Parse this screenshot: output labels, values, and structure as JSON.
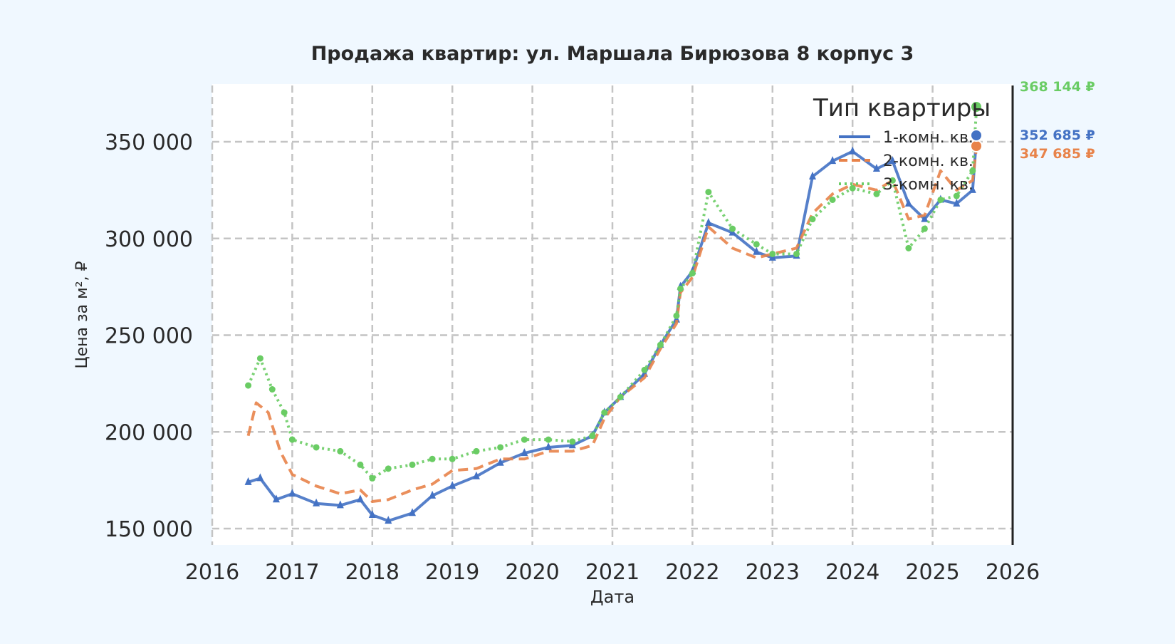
{
  "chart_data": {
    "type": "line",
    "title": "Продажа квартир: ул. Маршала Бирюзова 8 корпус 3",
    "xlabel": "Дата",
    "ylabel": "Цена за м², ₽",
    "xlim": [
      2016,
      2026
    ],
    "ylim": [
      142000,
      378000
    ],
    "xticks": [
      "2016",
      "2017",
      "2018",
      "2019",
      "2020",
      "2021",
      "2022",
      "2023",
      "2024",
      "2025",
      "2026"
    ],
    "yticks": [
      150000,
      200000,
      250000,
      300000,
      350000
    ],
    "ytick_labels": [
      "150 000",
      "200 000",
      "250 000",
      "300 000",
      "350 000"
    ],
    "grid": true,
    "legend": {
      "title": "Тип квартиры",
      "placement": "top-right"
    },
    "series": [
      {
        "name": "1-комн. кв.",
        "color": "#4472c4",
        "style": "solid-triangle",
        "end_label": "352 685 ₽",
        "x": [
          2016.45,
          2016.6,
          2016.8,
          2017.0,
          2017.3,
          2017.6,
          2017.85,
          2018.0,
          2018.2,
          2018.5,
          2018.75,
          2019.0,
          2019.3,
          2019.6,
          2019.9,
          2020.2,
          2020.5,
          2020.75,
          2020.9,
          2021.1,
          2021.4,
          2021.6,
          2021.8,
          2021.85,
          2022.0,
          2022.2,
          2022.5,
          2022.8,
          2023.0,
          2023.3,
          2023.5,
          2023.75,
          2024.0,
          2024.3,
          2024.5,
          2024.7,
          2024.9,
          2025.1,
          2025.3,
          2025.5,
          2025.55
        ],
        "y": [
          174000,
          176000,
          165000,
          168000,
          163000,
          162000,
          165000,
          157000,
          154000,
          158000,
          167000,
          172000,
          177000,
          184000,
          189000,
          192000,
          193000,
          198000,
          210000,
          218000,
          230000,
          245000,
          258000,
          275000,
          283000,
          308000,
          303000,
          293000,
          290000,
          291000,
          332000,
          340000,
          345000,
          336000,
          340000,
          318000,
          310000,
          320000,
          318000,
          325000,
          352685
        ]
      },
      {
        "name": "2-комн. кв.",
        "color": "#e8834a",
        "style": "dashed",
        "end_label": "347 685 ₽",
        "x": [
          2016.45,
          2016.55,
          2016.7,
          2016.85,
          2017.0,
          2017.3,
          2017.6,
          2017.85,
          2018.0,
          2018.2,
          2018.5,
          2018.75,
          2019.0,
          2019.3,
          2019.6,
          2019.9,
          2020.2,
          2020.5,
          2020.75,
          2020.9,
          2021.1,
          2021.4,
          2021.6,
          2021.8,
          2021.85,
          2022.0,
          2022.2,
          2022.5,
          2022.8,
          2023.0,
          2023.3,
          2023.5,
          2023.75,
          2024.0,
          2024.3,
          2024.5,
          2024.7,
          2024.9,
          2025.1,
          2025.3,
          2025.5,
          2025.55
        ],
        "y": [
          198000,
          215000,
          210000,
          190000,
          178000,
          172000,
          168000,
          170000,
          164000,
          165000,
          170000,
          173000,
          180000,
          181000,
          186000,
          186000,
          190000,
          190000,
          193000,
          207000,
          218000,
          228000,
          243000,
          256000,
          272000,
          280000,
          306000,
          295000,
          290000,
          292000,
          295000,
          313000,
          323000,
          328000,
          325000,
          330000,
          310000,
          312000,
          335000,
          325000,
          330000,
          347685
        ]
      },
      {
        "name": "3-комн. кв.",
        "color": "#6acc64",
        "style": "dotted-circle",
        "end_label": "368 144 ₽",
        "x": [
          2016.45,
          2016.6,
          2016.75,
          2016.9,
          2017.0,
          2017.3,
          2017.6,
          2017.85,
          2018.0,
          2018.2,
          2018.5,
          2018.75,
          2019.0,
          2019.3,
          2019.6,
          2019.9,
          2020.2,
          2020.5,
          2020.75,
          2020.9,
          2021.1,
          2021.4,
          2021.6,
          2021.8,
          2021.85,
          2022.0,
          2022.2,
          2022.5,
          2022.8,
          2023.0,
          2023.3,
          2023.5,
          2023.75,
          2024.0,
          2024.3,
          2024.5,
          2024.7,
          2024.9,
          2025.1,
          2025.3,
          2025.5,
          2025.55
        ],
        "y": [
          224000,
          238000,
          222000,
          210000,
          196000,
          192000,
          190000,
          183000,
          176000,
          181000,
          183000,
          186000,
          186000,
          190000,
          192000,
          196000,
          196000,
          195000,
          198000,
          210000,
          218000,
          232000,
          245000,
          260000,
          274000,
          282000,
          324000,
          305000,
          297000,
          292000,
          292000,
          310000,
          320000,
          326000,
          323000,
          330000,
          295000,
          305000,
          320000,
          322000,
          335000,
          368144
        ]
      }
    ]
  }
}
